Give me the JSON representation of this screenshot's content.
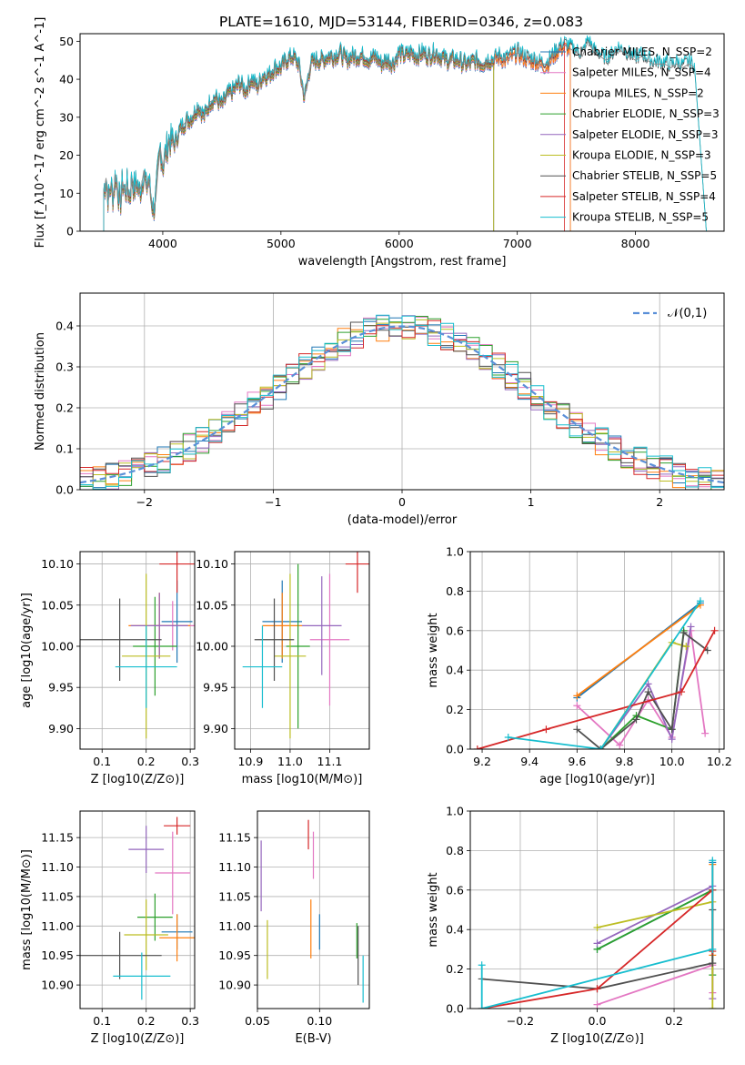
{
  "title": "PLATE=1610, MJD=53144, FIBERID=0346, z=0.083",
  "chart_data": [
    {
      "id": "spectrum",
      "type": "line",
      "xlabel": "wavelength [Angstrom, rest frame]",
      "ylabel": "Flux [f_λ10^-17 erg cm^-2 s^-1 A^-1]",
      "xlim": [
        3300,
        8750
      ],
      "ylim": [
        0,
        52
      ],
      "xticks": [
        4000,
        5000,
        6000,
        7000,
        8000
      ],
      "yticks": [
        0,
        10,
        20,
        30,
        40,
        50
      ],
      "legend_position": "right",
      "data_series": {
        "name": "",
        "color": "#8a8a8a",
        "x": [
          3500,
          3520,
          3540,
          3560,
          3580,
          3600,
          3620,
          3640,
          3660,
          3680,
          3700,
          3720,
          3740,
          3760,
          3780,
          3800,
          3820,
          3840,
          3860,
          3880,
          3900,
          3920,
          3940,
          3960,
          3980,
          4000,
          4050,
          4100,
          4150,
          4200,
          4250,
          4300,
          4350,
          4400,
          4450,
          4500,
          4550,
          4600,
          4650,
          4700,
          4750,
          4800,
          4850,
          4900,
          4950,
          5000,
          5050,
          5100,
          5150,
          5200,
          5250,
          5300,
          5350,
          5400,
          5450,
          5500,
          5550,
          5600,
          5650,
          5700,
          5750,
          5800,
          5850,
          5900,
          5950,
          6000,
          6050,
          6100,
          6150,
          6200,
          6250,
          6300,
          6350,
          6400,
          6450,
          6500,
          6550,
          6600,
          6650,
          6700,
          6750,
          6800,
          6850,
          6900,
          6950,
          7000,
          7050,
          7100,
          7150,
          7200,
          7250,
          7300,
          7350,
          7400,
          7450,
          7500,
          7550,
          7600,
          7650,
          7700,
          7750,
          7800,
          7850,
          7900,
          7950,
          8000,
          8050,
          8100,
          8150,
          8200,
          8250,
          8300,
          8350,
          8400,
          8450,
          8500
        ],
        "y": [
          10,
          14,
          8,
          12,
          9,
          15,
          11,
          7,
          13,
          10,
          12,
          9,
          14,
          11,
          13,
          10,
          12,
          16,
          11,
          14,
          9,
          6,
          8,
          16,
          22,
          17,
          24,
          23,
          27,
          29,
          30,
          33,
          30,
          34,
          35,
          33,
          36,
          37,
          39,
          37,
          40,
          38,
          41,
          41,
          43,
          43,
          45,
          46,
          44,
          35,
          44,
          45,
          45,
          46,
          46,
          47,
          45,
          46,
          46,
          46,
          45,
          46,
          44,
          45,
          44,
          47,
          46,
          47,
          46,
          47,
          46,
          47,
          46,
          45,
          45,
          45,
          44,
          44,
          45,
          44,
          45,
          45,
          46,
          45,
          46,
          47,
          46,
          45,
          45,
          44,
          44,
          46,
          48,
          49,
          48,
          47,
          46,
          50,
          47,
          46,
          45,
          46,
          48,
          47,
          46,
          45,
          46,
          45,
          44,
          44,
          44,
          43,
          44,
          43,
          44,
          43
        ]
      },
      "series": [
        {
          "name": "Chabrier MILES, N_SSP=2",
          "color": "#1f77b4",
          "xmax": 7450
        },
        {
          "name": "Salpeter MILES, N_SSP=4",
          "color": "#e377c2",
          "xmax": 7450
        },
        {
          "name": "Kroupa MILES, N_SSP=2",
          "color": "#ff7f0e",
          "xmax": 7450
        },
        {
          "name": "Chabrier ELODIE, N_SSP=3",
          "color": "#2ca02c",
          "xmax": 6800
        },
        {
          "name": "Salpeter ELODIE, N_SSP=3",
          "color": "#9467bd",
          "xmax": 6800
        },
        {
          "name": "Kroupa ELODIE, N_SSP=3",
          "color": "#bcbd22",
          "xmax": 6800
        },
        {
          "name": "Chabrier STELIB, N_SSP=5",
          "color": "#505050",
          "xmax": 8600
        },
        {
          "name": "Salpeter STELIB, N_SSP=4",
          "color": "#d62728",
          "xmax": 7400
        },
        {
          "name": "Kroupa STELIB, N_SSP=5",
          "color": "#17becf",
          "xmax": 8600
        }
      ]
    },
    {
      "id": "residuals",
      "type": "line",
      "xlabel": "(data-model)/error",
      "ylabel": "Normed distribution",
      "xlim": [
        -2.5,
        2.5
      ],
      "ylim": [
        0,
        0.48
      ],
      "xticks": [
        -2,
        -1,
        0,
        1,
        2
      ],
      "yticks": [
        0.0,
        0.1,
        0.2,
        0.3,
        0.4
      ],
      "grid": true,
      "legend": "𝒩(0,1)",
      "legend_position": "top-right",
      "normal_curve_color": "#5a8fd8"
    },
    {
      "id": "age-vs-Z",
      "type": "scatter",
      "xlabel": "Z [log10(Z/Z⊙)]",
      "ylabel": "age  [log10(age/yr)]",
      "xlim": [
        0.05,
        0.31
      ],
      "ylim": [
        9.875,
        10.115
      ],
      "xticks": [
        0.1,
        0.2,
        0.3
      ],
      "yticks": [
        9.9,
        9.95,
        10.0,
        10.05,
        10.1
      ],
      "grid": true,
      "points": [
        {
          "color": "#1f77b4",
          "x": 0.27,
          "xerr": 0.035,
          "y": 10.03,
          "yerr": 0.05
        },
        {
          "color": "#e377c2",
          "x": 0.26,
          "xerr": 0.05,
          "y": 10.025,
          "yerr": 0.03
        },
        {
          "color": "#ff7f0e",
          "x": 0.23,
          "xerr": 0.07,
          "y": 10.025,
          "yerr": 0.04
        },
        {
          "color": "#2ca02c",
          "x": 0.22,
          "xerr": 0.05,
          "y": 10.0,
          "yerr": 0.06
        },
        {
          "color": "#9467bd",
          "x": 0.23,
          "xerr": 0.065,
          "y": 10.025,
          "yerr": 0.04
        },
        {
          "color": "#bcbd22",
          "x": 0.2,
          "xerr": 0.055,
          "y": 9.988,
          "yerr": 0.1
        },
        {
          "color": "#505050",
          "x": 0.14,
          "xerr": 0.095,
          "y": 10.008,
          "yerr": 0.05
        },
        {
          "color": "#d62728",
          "x": 0.27,
          "xerr": 0.04,
          "y": 10.1,
          "yerr": 0.035
        },
        {
          "color": "#17becf",
          "x": 0.2,
          "xerr": 0.07,
          "y": 9.975,
          "yerr": 0.05
        }
      ]
    },
    {
      "id": "age-vs-mass",
      "type": "scatter",
      "xlabel": "mass [log10(M/M⊙)]",
      "ylabel": "",
      "xlim": [
        10.86,
        11.2
      ],
      "ylim": [
        9.875,
        10.115
      ],
      "xticks": [
        10.9,
        11.0,
        11.1
      ],
      "yticks": [
        9.9,
        9.95,
        10.0,
        10.05,
        10.1
      ],
      "grid": true,
      "points": [
        {
          "color": "#1f77b4",
          "x": 10.98,
          "xerr": 0.05,
          "y": 10.03,
          "yerr": 0.05
        },
        {
          "color": "#e377c2",
          "x": 11.1,
          "xerr": 0.05,
          "y": 10.008,
          "yerr": 0.08
        },
        {
          "color": "#ff7f0e",
          "x": 10.98,
          "xerr": 0.05,
          "y": 10.025,
          "yerr": 0.04
        },
        {
          "color": "#2ca02c",
          "x": 11.02,
          "xerr": 0.03,
          "y": 10.0,
          "yerr": 0.1
        },
        {
          "color": "#9467bd",
          "x": 11.08,
          "xerr": 0.05,
          "y": 10.025,
          "yerr": 0.06
        },
        {
          "color": "#bcbd22",
          "x": 11.0,
          "xerr": 0.04,
          "y": 9.988,
          "yerr": 0.1
        },
        {
          "color": "#505050",
          "x": 10.96,
          "xerr": 0.05,
          "y": 10.008,
          "yerr": 0.05
        },
        {
          "color": "#d62728",
          "x": 11.17,
          "xerr": 0.03,
          "y": 10.1,
          "yerr": 0.035
        },
        {
          "color": "#17becf",
          "x": 10.93,
          "xerr": 0.05,
          "y": 9.975,
          "yerr": 0.05
        }
      ]
    },
    {
      "id": "mass-weight-vs-age",
      "type": "line",
      "xlabel": "age  [log10(age/yr)]",
      "ylabel": "mass weight",
      "xlim": [
        9.15,
        10.22
      ],
      "ylim": [
        0,
        1.0
      ],
      "xticks": [
        9.2,
        9.4,
        9.6,
        9.8,
        10.0,
        10.2
      ],
      "yticks": [
        0.0,
        0.2,
        0.4,
        0.6,
        0.8,
        1.0
      ],
      "grid": true,
      "series": [
        {
          "color": "#1f77b4",
          "x": [
            9.6,
            10.12
          ],
          "y": [
            0.26,
            0.74
          ]
        },
        {
          "color": "#e377c2",
          "x": [
            9.6,
            9.78,
            9.9,
            10.0,
            10.08,
            10.14
          ],
          "y": [
            0.22,
            0.02,
            0.25,
            0.06,
            0.6,
            0.08
          ]
        },
        {
          "color": "#ff7f0e",
          "x": [
            9.6,
            10.12
          ],
          "y": [
            0.27,
            0.73
          ]
        },
        {
          "color": "#2ca02c",
          "x": [
            9.7,
            9.85,
            10.0,
            10.05
          ],
          "y": [
            0.0,
            0.17,
            0.1,
            0.6
          ]
        },
        {
          "color": "#9467bd",
          "x": [
            9.7,
            9.9,
            10.0,
            10.08
          ],
          "y": [
            0.0,
            0.33,
            0.05,
            0.62
          ]
        },
        {
          "color": "#bcbd22",
          "x": [
            9.7,
            10.0,
            10.06
          ],
          "y": [
            0.0,
            0.54,
            0.52
          ]
        },
        {
          "color": "#505050",
          "x": [
            9.6,
            9.7,
            9.85,
            9.9,
            10.0,
            10.05,
            10.15
          ],
          "y": [
            0.1,
            0.0,
            0.15,
            0.29,
            0.1,
            0.59,
            0.5
          ]
        },
        {
          "color": "#d62728",
          "x": [
            9.18,
            9.47,
            10.04,
            10.18
          ],
          "y": [
            0.0,
            0.1,
            0.29,
            0.6
          ]
        },
        {
          "color": "#17becf",
          "x": [
            9.31,
            9.7,
            10.12
          ],
          "y": [
            0.06,
            0.0,
            0.75
          ]
        }
      ]
    },
    {
      "id": "mass-vs-Z",
      "type": "scatter",
      "xlabel": "Z [log10(Z/Z⊙)]",
      "ylabel": "mass [log10(M/M⊙)]",
      "xlim": [
        0.05,
        0.31
      ],
      "ylim": [
        10.86,
        11.195
      ],
      "xticks": [
        0.1,
        0.2,
        0.3
      ],
      "yticks": [
        10.9,
        10.95,
        11.0,
        11.05,
        11.1,
        11.15
      ],
      "grid": true,
      "points": [
        {
          "color": "#1f77b4",
          "x": 0.27,
          "xerr": 0.035,
          "y": 10.99,
          "yerr": 0.03
        },
        {
          "color": "#e377c2",
          "x": 0.26,
          "xerr": 0.04,
          "y": 11.09,
          "yerr": 0.07
        },
        {
          "color": "#ff7f0e",
          "x": 0.27,
          "xerr": 0.04,
          "y": 10.98,
          "yerr": 0.04
        },
        {
          "color": "#2ca02c",
          "x": 0.22,
          "xerr": 0.04,
          "y": 11.015,
          "yerr": 0.04
        },
        {
          "color": "#9467bd",
          "x": 0.2,
          "xerr": 0.04,
          "y": 11.13,
          "yerr": 0.04
        },
        {
          "color": "#bcbd22",
          "x": 0.2,
          "xerr": 0.05,
          "y": 10.985,
          "yerr": 0.06
        },
        {
          "color": "#505050",
          "x": 0.14,
          "xerr": 0.095,
          "y": 10.95,
          "yerr": 0.04
        },
        {
          "color": "#d62728",
          "x": 0.27,
          "xerr": 0.03,
          "y": 11.17,
          "yerr": 0.015
        },
        {
          "color": "#17becf",
          "x": 0.19,
          "xerr": 0.065,
          "y": 10.915,
          "yerr": 0.04
        }
      ]
    },
    {
      "id": "mass-vs-EBV",
      "type": "scatter",
      "xlabel": "E(B-V)",
      "ylabel": "",
      "xlim": [
        0.05,
        0.14
      ],
      "ylim": [
        10.86,
        11.195
      ],
      "xticks": [
        0.05,
        0.1
      ],
      "xticklabels": [
        "0.05",
        "0.10"
      ],
      "yticks": [
        10.9,
        10.95,
        11.0,
        11.05,
        11.1,
        11.15
      ],
      "grid": true,
      "points": [
        {
          "color": "#1f77b4",
          "x": 0.1,
          "y": 10.99,
          "yerr": 0.03
        },
        {
          "color": "#e377c2",
          "x": 0.095,
          "y": 11.12,
          "yerr": 0.04
        },
        {
          "color": "#ff7f0e",
          "x": 0.093,
          "y": 10.995,
          "yerr": 0.05
        },
        {
          "color": "#2ca02c",
          "x": 0.13,
          "y": 10.975,
          "yerr": 0.03
        },
        {
          "color": "#9467bd",
          "x": 0.053,
          "y": 11.085,
          "yerr": 0.06
        },
        {
          "color": "#bcbd22",
          "x": 0.058,
          "y": 10.96,
          "yerr": 0.05
        },
        {
          "color": "#505050",
          "x": 0.131,
          "y": 10.95,
          "yerr": 0.05
        },
        {
          "color": "#d62728",
          "x": 0.091,
          "y": 11.155,
          "yerr": 0.025
        },
        {
          "color": "#17becf",
          "x": 0.135,
          "y": 10.91,
          "yerr": 0.04
        }
      ]
    },
    {
      "id": "mass-weight-vs-Z",
      "type": "line",
      "xlabel": "Z [log10(Z/Z⊙)]",
      "ylabel": "mass weight",
      "xlim": [
        -0.33,
        0.33
      ],
      "ylim": [
        0,
        1.0
      ],
      "xticks": [
        -0.2,
        0.0,
        0.2
      ],
      "xticklabels": [
        "−0.2",
        "0.0",
        "0.2"
      ],
      "yticks": [
        0.0,
        0.2,
        0.4,
        0.6,
        0.8,
        1.0
      ],
      "grid": true,
      "series": [
        {
          "color": "#1f77b4",
          "x": [
            0.0,
            0.3,
            0.3
          ],
          "y": [
            0.3,
            0.6,
            0.74
          ]
        },
        {
          "color": "#e377c2",
          "x": [
            0.0,
            0.3,
            0.3
          ],
          "y": [
            0.02,
            0.22,
            0.08
          ]
        },
        {
          "color": "#ff7f0e",
          "x": [
            0.3,
            0.3
          ],
          "y": [
            0.27,
            0.73
          ]
        },
        {
          "color": "#2ca02c",
          "x": [
            0.0,
            0.3,
            0.3
          ],
          "y": [
            0.3,
            0.6,
            0.17
          ]
        },
        {
          "color": "#9467bd",
          "x": [
            0.0,
            0.3,
            0.3
          ],
          "y": [
            0.33,
            0.62,
            0.05
          ]
        },
        {
          "color": "#bcbd22",
          "x": [
            0.0,
            0.3,
            0.3
          ],
          "y": [
            0.41,
            0.54,
            0.0
          ]
        },
        {
          "color": "#505050",
          "x": [
            -0.3,
            0.0,
            0.3,
            0.3
          ],
          "y": [
            0.15,
            0.1,
            0.23,
            0.5
          ]
        },
        {
          "color": "#d62728",
          "x": [
            -0.3,
            0.0,
            0.3,
            0.3
          ],
          "y": [
            0.0,
            0.1,
            0.6,
            0.29
          ]
        },
        {
          "color": "#17becf",
          "x": [
            -0.3,
            -0.3,
            0.3,
            0.3
          ],
          "y": [
            0.22,
            0.0,
            0.3,
            0.75
          ]
        }
      ]
    }
  ]
}
